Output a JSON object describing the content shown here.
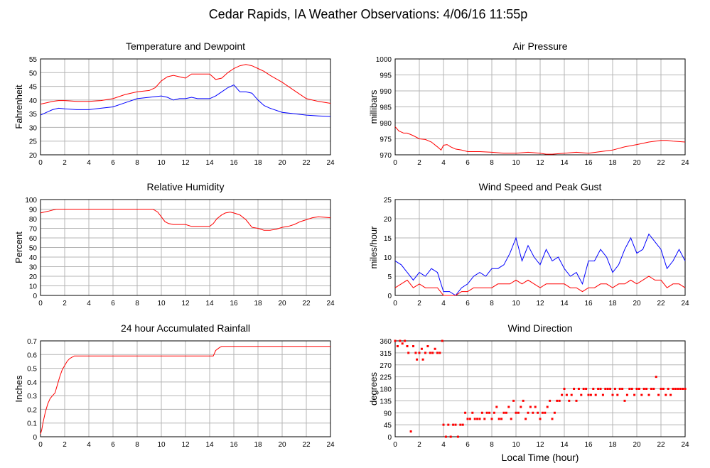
{
  "page": {
    "title": "Cedar Rapids, IA Weather Observations: 4/06/16 11:55p",
    "xlabel": "Local Time (hour)"
  },
  "colors": {
    "red": "#ff0000",
    "blue": "#0000ff",
    "grid": "#b4b4b4",
    "frame": "#000000"
  },
  "chart_data": [
    {
      "id": "temp",
      "type": "line",
      "title": "Temperature and Dewpoint",
      "ylabel": "Fahrenheit",
      "xlim": [
        0,
        24
      ],
      "ylim": [
        20,
        55
      ],
      "xticks": [
        0,
        2,
        4,
        6,
        8,
        10,
        12,
        14,
        16,
        18,
        20,
        22,
        24
      ],
      "yticks": [
        20,
        25,
        30,
        35,
        40,
        45,
        50,
        55
      ],
      "grid": true,
      "series": [
        {
          "color": "red",
          "x": [
            0,
            0.5,
            1,
            1.5,
            2,
            3,
            4,
            5,
            6,
            7,
            8,
            9,
            9.5,
            10,
            10.5,
            11,
            11.5,
            12,
            12.5,
            13,
            14,
            14.5,
            15,
            15.5,
            16,
            16.5,
            17,
            17.5,
            18,
            18.5,
            19,
            20,
            21,
            22,
            23,
            24
          ],
          "y": [
            38.5,
            39,
            39.5,
            39.8,
            39.8,
            39.5,
            39.5,
            39.8,
            40.5,
            42,
            43,
            43.5,
            44.5,
            47,
            48.5,
            49,
            48.5,
            48,
            49.5,
            49.5,
            49.5,
            47.5,
            48,
            50,
            51.5,
            52.5,
            53,
            52.5,
            51.5,
            50.5,
            49,
            46.5,
            43.5,
            40.5,
            39.5,
            38.8
          ]
        },
        {
          "color": "blue",
          "x": [
            0,
            0.5,
            1,
            1.5,
            2,
            3,
            4,
            5,
            6,
            7,
            8,
            9,
            10,
            10.5,
            11,
            11.5,
            12,
            12.5,
            13,
            14,
            14.5,
            15,
            15.5,
            16,
            16.5,
            17,
            17.5,
            18,
            18.5,
            19,
            20,
            21,
            22,
            23,
            24
          ],
          "y": [
            34.5,
            35.5,
            36.5,
            37,
            36.8,
            36.5,
            36.5,
            37,
            37.5,
            39,
            40.5,
            41,
            41.5,
            41,
            40,
            40.5,
            40.5,
            41,
            40.5,
            40.5,
            41.5,
            43,
            44.5,
            45.5,
            43,
            43,
            42.5,
            40,
            38,
            37,
            35.5,
            35,
            34.5,
            34.2,
            34
          ]
        }
      ]
    },
    {
      "id": "pres",
      "type": "line",
      "title": "Air Pressure",
      "ylabel": "millibars",
      "xlim": [
        0,
        24
      ],
      "ylim": [
        970,
        1000
      ],
      "xticks": [
        0,
        2,
        4,
        6,
        8,
        10,
        12,
        14,
        16,
        18,
        20,
        22,
        24
      ],
      "yticks": [
        970,
        975,
        980,
        985,
        990,
        995,
        1000
      ],
      "grid": true,
      "series": [
        {
          "color": "red",
          "x": [
            0,
            0.3,
            0.7,
            1,
            1.5,
            2,
            2.5,
            3,
            3.5,
            3.8,
            4,
            4.3,
            4.6,
            5,
            5.5,
            6,
            7,
            8,
            9,
            10,
            11,
            12,
            12.5,
            13,
            14,
            15,
            16,
            17,
            18,
            19,
            20,
            21,
            22,
            22.5,
            23,
            24
          ],
          "y": [
            978.8,
            977.5,
            976.8,
            976.8,
            976,
            975,
            974.8,
            974,
            972.5,
            971.5,
            973,
            973.2,
            972.5,
            971.8,
            971.5,
            971,
            971,
            970.8,
            970.5,
            970.5,
            970.8,
            970.5,
            970.2,
            970.2,
            970.5,
            970.8,
            970.5,
            971,
            971.5,
            972.5,
            973.2,
            974,
            974.5,
            974.5,
            974.3,
            974
          ]
        }
      ]
    },
    {
      "id": "rh",
      "type": "line",
      "title": "Relative Humidity",
      "ylabel": "Percent",
      "xlim": [
        0,
        24
      ],
      "ylim": [
        0,
        100
      ],
      "xticks": [
        0,
        2,
        4,
        6,
        8,
        10,
        12,
        14,
        16,
        18,
        20,
        22,
        24
      ],
      "yticks": [
        0,
        10,
        20,
        30,
        40,
        50,
        60,
        70,
        80,
        90,
        100
      ],
      "grid": true,
      "series": [
        {
          "color": "red",
          "x": [
            0,
            0.3,
            0.7,
            1.3,
            2,
            4,
            6,
            8,
            9.3,
            9.7,
            10,
            10.3,
            10.6,
            11,
            12,
            12.5,
            13,
            14,
            14.3,
            14.6,
            15,
            15.3,
            15.7,
            16,
            16.5,
            17,
            17.5,
            18,
            18.5,
            19,
            19.5,
            20,
            20.5,
            21,
            21.5,
            22,
            22.5,
            23,
            24
          ],
          "y": [
            86,
            87,
            88,
            90,
            90,
            90,
            90,
            90,
            90,
            87,
            82,
            77,
            75,
            74,
            74,
            72,
            72,
            72,
            75,
            80,
            84,
            86,
            87,
            86,
            84,
            79,
            71,
            70,
            68,
            68,
            69,
            71,
            72,
            74,
            77,
            79,
            81,
            82,
            81
          ]
        }
      ]
    },
    {
      "id": "wind",
      "type": "line",
      "title": "Wind Speed and Peak Gust",
      "ylabel": "miles/hour",
      "xlim": [
        0,
        24
      ],
      "ylim": [
        0,
        25
      ],
      "xticks": [
        0,
        2,
        4,
        6,
        8,
        10,
        12,
        14,
        16,
        18,
        20,
        22,
        24
      ],
      "yticks": [
        0,
        5,
        10,
        15,
        20,
        25
      ],
      "grid": true,
      "series": [
        {
          "color": "blue",
          "x": [
            0,
            0.5,
            1,
            1.5,
            2,
            2.5,
            3,
            3.5,
            4,
            4.5,
            5,
            5.5,
            6,
            6.5,
            7,
            7.5,
            8,
            8.5,
            9,
            9.5,
            10,
            10.5,
            11,
            11.5,
            12,
            12.5,
            13,
            13.5,
            14,
            14.5,
            15,
            15.5,
            16,
            16.5,
            17,
            17.5,
            18,
            18.5,
            19,
            19.5,
            20,
            20.5,
            21,
            21.5,
            22,
            22.5,
            23,
            23.5,
            24
          ],
          "y": [
            9,
            8,
            6,
            4,
            6,
            5,
            7,
            6,
            1,
            1,
            0,
            2,
            3,
            5,
            6,
            5,
            7,
            7,
            8,
            11,
            15,
            9,
            13,
            10,
            8,
            12,
            9,
            10,
            7,
            5,
            6,
            3,
            9,
            9,
            12,
            10,
            6,
            8,
            12,
            15,
            11,
            12,
            16,
            14,
            12,
            7,
            9,
            12,
            9
          ]
        },
        {
          "color": "red",
          "x": [
            0,
            0.5,
            1,
            1.5,
            2,
            2.5,
            3,
            3.5,
            4,
            4.5,
            5,
            5.5,
            6,
            6.5,
            7,
            7.5,
            8,
            8.5,
            9,
            9.5,
            10,
            10.5,
            11,
            11.5,
            12,
            12.5,
            13,
            13.5,
            14,
            14.5,
            15,
            15.5,
            16,
            16.5,
            17,
            17.5,
            18,
            18.5,
            19,
            19.5,
            20,
            20.5,
            21,
            21.5,
            22,
            22.5,
            23,
            23.5,
            24
          ],
          "y": [
            2,
            3,
            4,
            2,
            3,
            2,
            2,
            2,
            0,
            0,
            0,
            1,
            1,
            2,
            2,
            2,
            2,
            3,
            3,
            3,
            4,
            3,
            4,
            3,
            2,
            3,
            3,
            3,
            3,
            2,
            2,
            1,
            2,
            2,
            3,
            3,
            2,
            3,
            3,
            4,
            3,
            4,
            5,
            4,
            4,
            2,
            3,
            3,
            2
          ]
        }
      ]
    },
    {
      "id": "rain",
      "type": "line",
      "title": "24 hour Accumulated Rainfall",
      "ylabel": "Inches",
      "xlim": [
        0,
        24
      ],
      "ylim": [
        0,
        0.7
      ],
      "xticks": [
        0,
        2,
        4,
        6,
        8,
        10,
        12,
        14,
        16,
        18,
        20,
        22,
        24
      ],
      "yticks": [
        0,
        0.1,
        0.2,
        0.3,
        0.4,
        0.5,
        0.6,
        0.7
      ],
      "grid": true,
      "series": [
        {
          "color": "red",
          "x": [
            0,
            0.1,
            0.2,
            0.4,
            0.6,
            0.8,
            1,
            1.2,
            1.4,
            1.6,
            1.8,
            2,
            2.2,
            2.4,
            2.6,
            2.8,
            3,
            6,
            10,
            14,
            14.3,
            14.5,
            14.8,
            15,
            18,
            20,
            24
          ],
          "y": [
            0.02,
            0.05,
            0.1,
            0.18,
            0.24,
            0.28,
            0.3,
            0.32,
            0.38,
            0.44,
            0.49,
            0.52,
            0.55,
            0.57,
            0.58,
            0.59,
            0.59,
            0.59,
            0.59,
            0.59,
            0.59,
            0.63,
            0.65,
            0.66,
            0.66,
            0.66,
            0.66
          ]
        }
      ]
    },
    {
      "id": "dir",
      "type": "scatter",
      "title": "Wind Direction",
      "ylabel": "degrees",
      "xlim": [
        0,
        24
      ],
      "ylim": [
        0,
        360
      ],
      "xticks": [
        0,
        2,
        4,
        6,
        8,
        10,
        12,
        14,
        16,
        18,
        20,
        22,
        24
      ],
      "yticks": [
        0,
        45,
        90,
        135,
        180,
        225,
        270,
        315,
        360
      ],
      "grid": true,
      "series": [
        {
          "color": "red",
          "x": [
            0,
            0.2,
            0.4,
            0.6,
            0.8,
            1,
            1.1,
            1.3,
            1.5,
            1.7,
            1.8,
            2,
            2.2,
            2.3,
            2.5,
            2.7,
            2.9,
            3.1,
            3.3,
            3.5,
            3.7,
            3.9,
            4,
            4.2,
            4.4,
            4.6,
            4.8,
            5,
            5.2,
            5.4,
            5.6,
            5.8,
            6,
            6.2,
            6.4,
            6.6,
            6.8,
            7,
            7.2,
            7.4,
            7.6,
            7.8,
            8,
            8.2,
            8.4,
            8.6,
            8.8,
            9,
            9.2,
            9.4,
            9.6,
            9.8,
            10,
            10.2,
            10.4,
            10.6,
            10.8,
            11,
            11.2,
            11.4,
            11.6,
            11.8,
            12,
            12.2,
            12.4,
            12.6,
            12.8,
            13,
            13.2,
            13.4,
            13.6,
            13.8,
            14,
            14.2,
            14.4,
            14.6,
            14.8,
            15,
            15.2,
            15.4,
            15.6,
            15.8,
            16,
            16.2,
            16.4,
            16.6,
            16.8,
            17,
            17.2,
            17.4,
            17.6,
            17.8,
            18,
            18.2,
            18.4,
            18.6,
            18.8,
            19,
            19.2,
            19.4,
            19.6,
            19.8,
            20,
            20.2,
            20.4,
            20.6,
            20.8,
            21,
            21.2,
            21.4,
            21.6,
            21.8,
            22,
            22.2,
            22.4,
            22.6,
            22.8,
            23,
            23.2,
            23.4,
            23.6,
            23.8,
            24
          ],
          "y": [
            360,
            340,
            360,
            350,
            360,
            340,
            315,
            20,
            340,
            315,
            290,
            315,
            330,
            290,
            315,
            340,
            315,
            315,
            330,
            315,
            315,
            360,
            45,
            0,
            45,
            0,
            45,
            45,
            0,
            45,
            45,
            90,
            67,
            67,
            90,
            67,
            67,
            67,
            90,
            67,
            90,
            90,
            67,
            90,
            112,
            67,
            67,
            90,
            90,
            112,
            67,
            135,
            90,
            90,
            112,
            135,
            67,
            90,
            112,
            90,
            112,
            90,
            67,
            90,
            90,
            112,
            135,
            67,
            90,
            135,
            135,
            157,
            180,
            157,
            135,
            157,
            180,
            135,
            180,
            157,
            180,
            180,
            157,
            157,
            180,
            157,
            180,
            180,
            157,
            180,
            180,
            180,
            157,
            180,
            157,
            180,
            180,
            135,
            157,
            180,
            180,
            157,
            180,
            180,
            157,
            180,
            180,
            157,
            180,
            180,
            225,
            157,
            180,
            180,
            157,
            180,
            157,
            180,
            180,
            180,
            180,
            180,
            180
          ]
        }
      ]
    }
  ]
}
